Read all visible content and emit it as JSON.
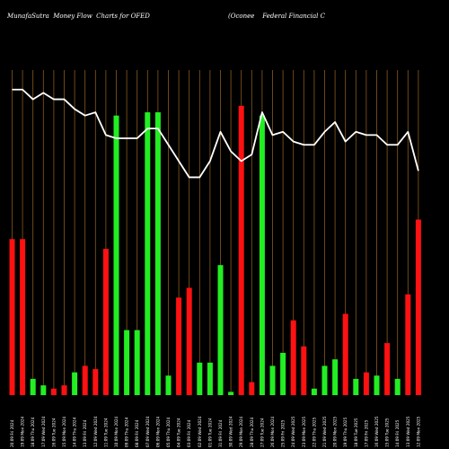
{
  "header": {
    "title_left": "MunafaSutra  Money Flow  Charts for OFED",
    "title_right": "(Oconee    Federal Financial C"
  },
  "chart_data": {
    "type": "bar",
    "title": "MunafaSutra  Money Flow  Charts for OFED",
    "subtitle": "(Oconee    Federal Financial C",
    "categories": [
      "02/09/2024",
      "05/09/2024",
      "10/09/2024",
      "19/09/2024",
      "23/09/2024",
      "30/09/2024",
      "03/10/2024",
      "10/10/2024",
      "16/10/2024",
      "21/10/2024",
      "24/10/2024",
      "29/10/2024",
      "01/11/2024",
      "06/11/2024",
      "11/11/2024",
      "14/11/2024",
      "19/11/2024",
      "22/11/2024",
      "27/11/2024",
      "03/12/2024",
      "06/12/2024",
      "11/12/2024",
      "16/12/2024",
      "19/12/2024",
      "24/12/2024",
      "30/12/2024",
      "03/01/2025",
      "08/01/2025",
      "13/01/2025",
      "16/01/2025",
      "22/01/2025",
      "27/01/2025",
      "30/01/2025",
      "04/02/2025",
      "07/02/2025",
      "12/02/2025",
      "18/02/2025",
      "21/02/2025",
      "26/02/2025",
      "03/03/2025"
    ],
    "x_tick_labels": [
      "20:09 Fri 2024",
      "19:09 Mon 2024",
      "18:09 Thu 2024",
      "17:09 Wed 2024",
      "16:09 Tue 2024",
      "15:09 Mon 2024",
      "14:09 Thu 2024",
      "13:09 Fri 2024",
      "12:09 Wed 2024",
      "11:09 Tue 2024",
      "10:09 Mon 2024",
      "09:09 Thu 2024",
      "08:09 Fri 2024",
      "07:09 Wed 2024",
      "06:09 Mon 2024",
      "05:09 Thu 2024",
      "04:09 Tue 2024",
      "03:09 Fri 2024",
      "02:09 Wed 2024",
      "01:09 Tue 2024",
      "31:09 Fri 2024",
      "30:09 Wed 2024",
      "29:09 Mon 2024",
      "28:09 Thu 2024",
      "27:09 Tue 2024",
      "26:09 Mon 2024",
      "25:09 Fri 2025",
      "24:09 Wed 2025",
      "23:09 Mon 2025",
      "22:09 Thu 2025",
      "21:09 Wed 2025",
      "20:09 Mon 2025",
      "19:09 Thu 2025",
      "18:09 Tue 2025",
      "17:09 Fri 2025",
      "16:09 Wed 2025",
      "15:09 Tue 2025",
      "14:09 Fri 2025",
      "13:09 Wed 2025",
      "12:09 Mon 2025"
    ],
    "series": [
      {
        "values": [
          48,
          48,
          5,
          3,
          2,
          3,
          7,
          9,
          8,
          45,
          86,
          20,
          20,
          87,
          87,
          6,
          30,
          33,
          10,
          10,
          40,
          1,
          89,
          4,
          86,
          9,
          13,
          23,
          15,
          2,
          9,
          11,
          25,
          5,
          7,
          6,
          16,
          5,
          31,
          54
        ],
        "colors": [
          "red",
          "red",
          "green",
          "green",
          "red",
          "red",
          "green",
          "red",
          "red",
          "red",
          "green",
          "green",
          "green",
          "green",
          "green",
          "green",
          "red",
          "red",
          "green",
          "green",
          "green",
          "green",
          "red",
          "red",
          "green",
          "green",
          "green",
          "red",
          "red",
          "green",
          "green",
          "green",
          "red",
          "green",
          "red",
          "green",
          "red",
          "green",
          "red",
          "red"
        ]
      },
      {
        "type": "line",
        "values": [
          94,
          94,
          91,
          93,
          91,
          91,
          88,
          86,
          87,
          80,
          79,
          79,
          79,
          82,
          82,
          77,
          72,
          67,
          67,
          72,
          81,
          75,
          72,
          74,
          87,
          80,
          81,
          78,
          77,
          77,
          81,
          84,
          78,
          81,
          80,
          80,
          77,
          77,
          81,
          69
        ]
      }
    ],
    "ylim": [
      0,
      100
    ],
    "grid": "vertical",
    "colors": {
      "background": "#000000",
      "grid": "#8a5a1c",
      "up": "#22ee22",
      "down": "#ff1111",
      "line": "#ffffff",
      "text": "#ffffff"
    }
  }
}
